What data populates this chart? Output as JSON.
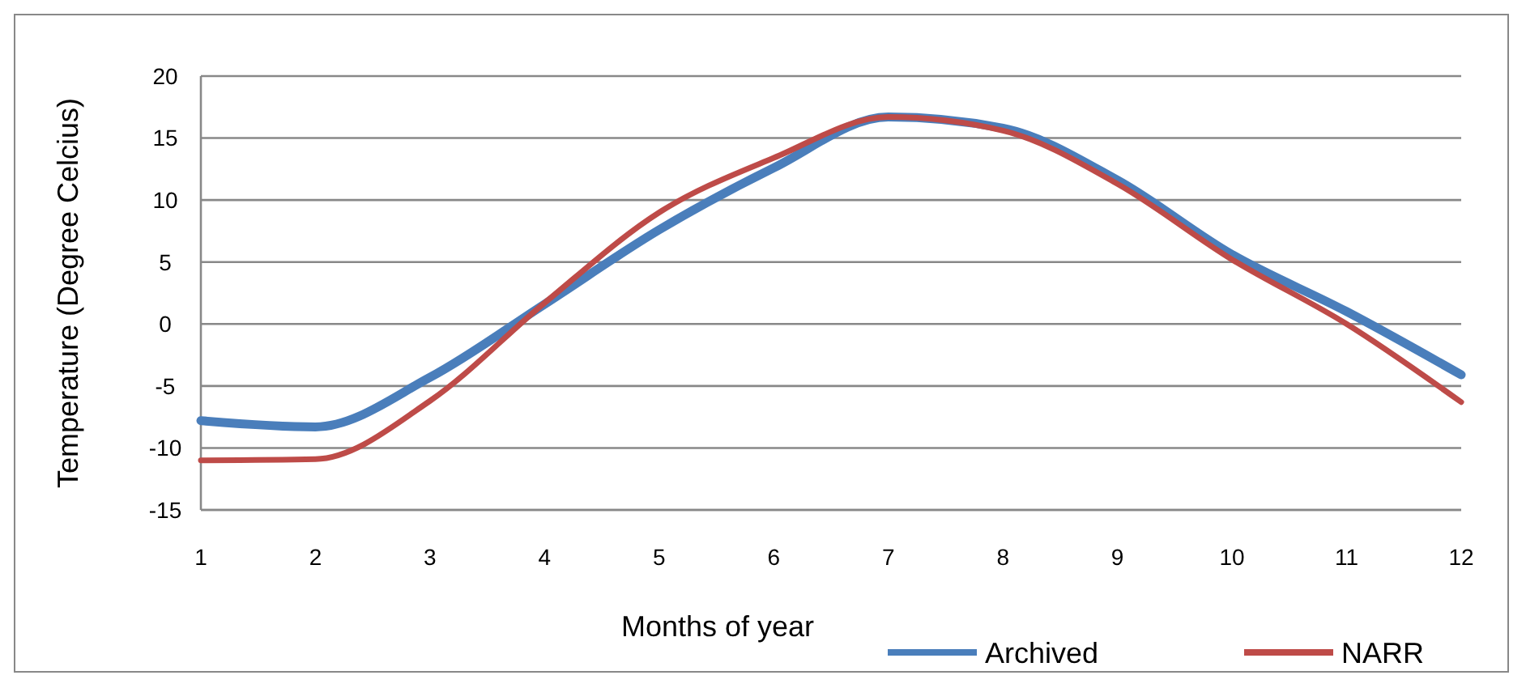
{
  "chart_data": {
    "type": "line",
    "xlabel": "Months of year",
    "ylabel": "Temperature (Degree Celcius)",
    "x": [
      1,
      2,
      3,
      4,
      5,
      6,
      7,
      8,
      9,
      10,
      11,
      12
    ],
    "xlim": [
      1,
      12
    ],
    "xticks": [
      1,
      2,
      3,
      4,
      5,
      6,
      7,
      8,
      9,
      10,
      11,
      12
    ],
    "ylim": [
      -15,
      20
    ],
    "yticks": [
      -15,
      -10,
      -5,
      0,
      5,
      10,
      15,
      20
    ],
    "grid": "y",
    "legend": "bottom",
    "marker": "none",
    "line_style": "solid",
    "series": [
      {
        "name": "Archived",
        "color": "#4a7ebb",
        "values": [
          -7.8,
          -8.3,
          -4.3,
          1.6,
          7.6,
          12.6,
          16.7,
          15.8,
          11.6,
          5.6,
          1.0,
          -4.1
        ]
      },
      {
        "name": "NARR",
        "color": "#be4b48",
        "values": [
          -11.0,
          -10.9,
          -6.2,
          1.7,
          9.0,
          13.4,
          16.7,
          15.6,
          11.3,
          5.2,
          0.0,
          -6.3
        ]
      }
    ]
  }
}
